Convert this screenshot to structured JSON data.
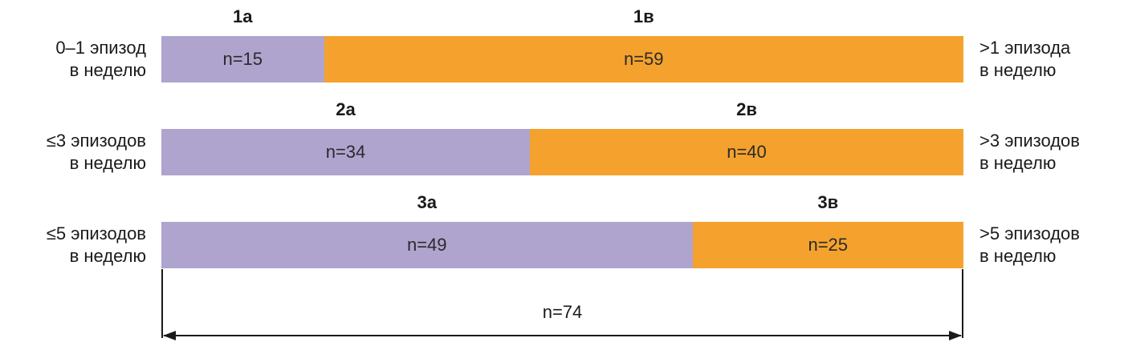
{
  "chart_data": {
    "type": "bar",
    "orientation": "horizontal-stacked",
    "colors": {
      "a": "#AFA4CE",
      "b": "#F4A22D"
    },
    "rows": [
      {
        "left_label": [
          "0–1 эпизод",
          "в неделю"
        ],
        "right_label": [
          ">1 эпизода",
          "в неделю"
        ],
        "segments": [
          {
            "name": "1а",
            "value": 15,
            "text": "n=15"
          },
          {
            "name": "1в",
            "value": 59,
            "text": "n=59"
          }
        ]
      },
      {
        "left_label": [
          "≤3 эпизодов",
          "в неделю"
        ],
        "right_label": [
          ">3 эпизодов",
          "в неделю"
        ],
        "segments": [
          {
            "name": "2а",
            "value": 34,
            "text": "n=34"
          },
          {
            "name": "2в",
            "value": 40,
            "text": "n=40"
          }
        ]
      },
      {
        "left_label": [
          "≤5 эпизодов",
          "в неделю"
        ],
        "right_label": [
          ">5 эпизодов",
          "в неделю"
        ],
        "segments": [
          {
            "name": "3а",
            "value": 49,
            "text": "n=49"
          },
          {
            "name": "3в",
            "value": 25,
            "text": "n=25"
          }
        ]
      }
    ],
    "total": {
      "value": 74,
      "text": "n=74"
    }
  }
}
